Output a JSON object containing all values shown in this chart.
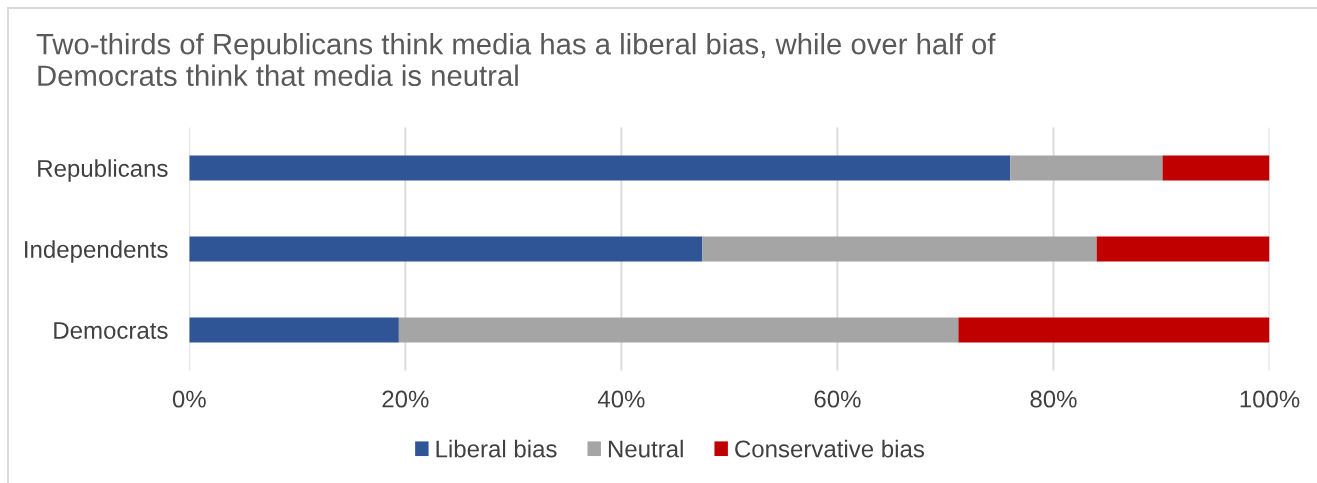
{
  "chart_data": {
    "type": "bar",
    "orientation": "horizontal",
    "stacked": true,
    "title": "Two-thirds of Republicans think media has a liberal bias, while over half of\nDemocrats think that media is neutral",
    "categories": [
      "Republicans",
      "Independents",
      "Democrats"
    ],
    "series": [
      {
        "name": "Liberal bias",
        "color": "#2f5597",
        "values": [
          76.0,
          47.5,
          19.4
        ]
      },
      {
        "name": "Neutral",
        "color": "#a5a5a5",
        "values": [
          14.1,
          36.5,
          51.8
        ]
      },
      {
        "name": "Conservative bias",
        "color": "#c00000",
        "values": [
          9.9,
          16.0,
          28.8
        ]
      }
    ],
    "xlim": [
      0,
      100
    ],
    "xticks": [
      {
        "value": 0,
        "label": "0%"
      },
      {
        "value": 20,
        "label": "20%"
      },
      {
        "value": 40,
        "label": "40%"
      },
      {
        "value": 60,
        "label": "60%"
      },
      {
        "value": 80,
        "label": "80%"
      },
      {
        "value": 100,
        "label": "100%"
      }
    ],
    "grid": "x",
    "legend": "bottom"
  }
}
